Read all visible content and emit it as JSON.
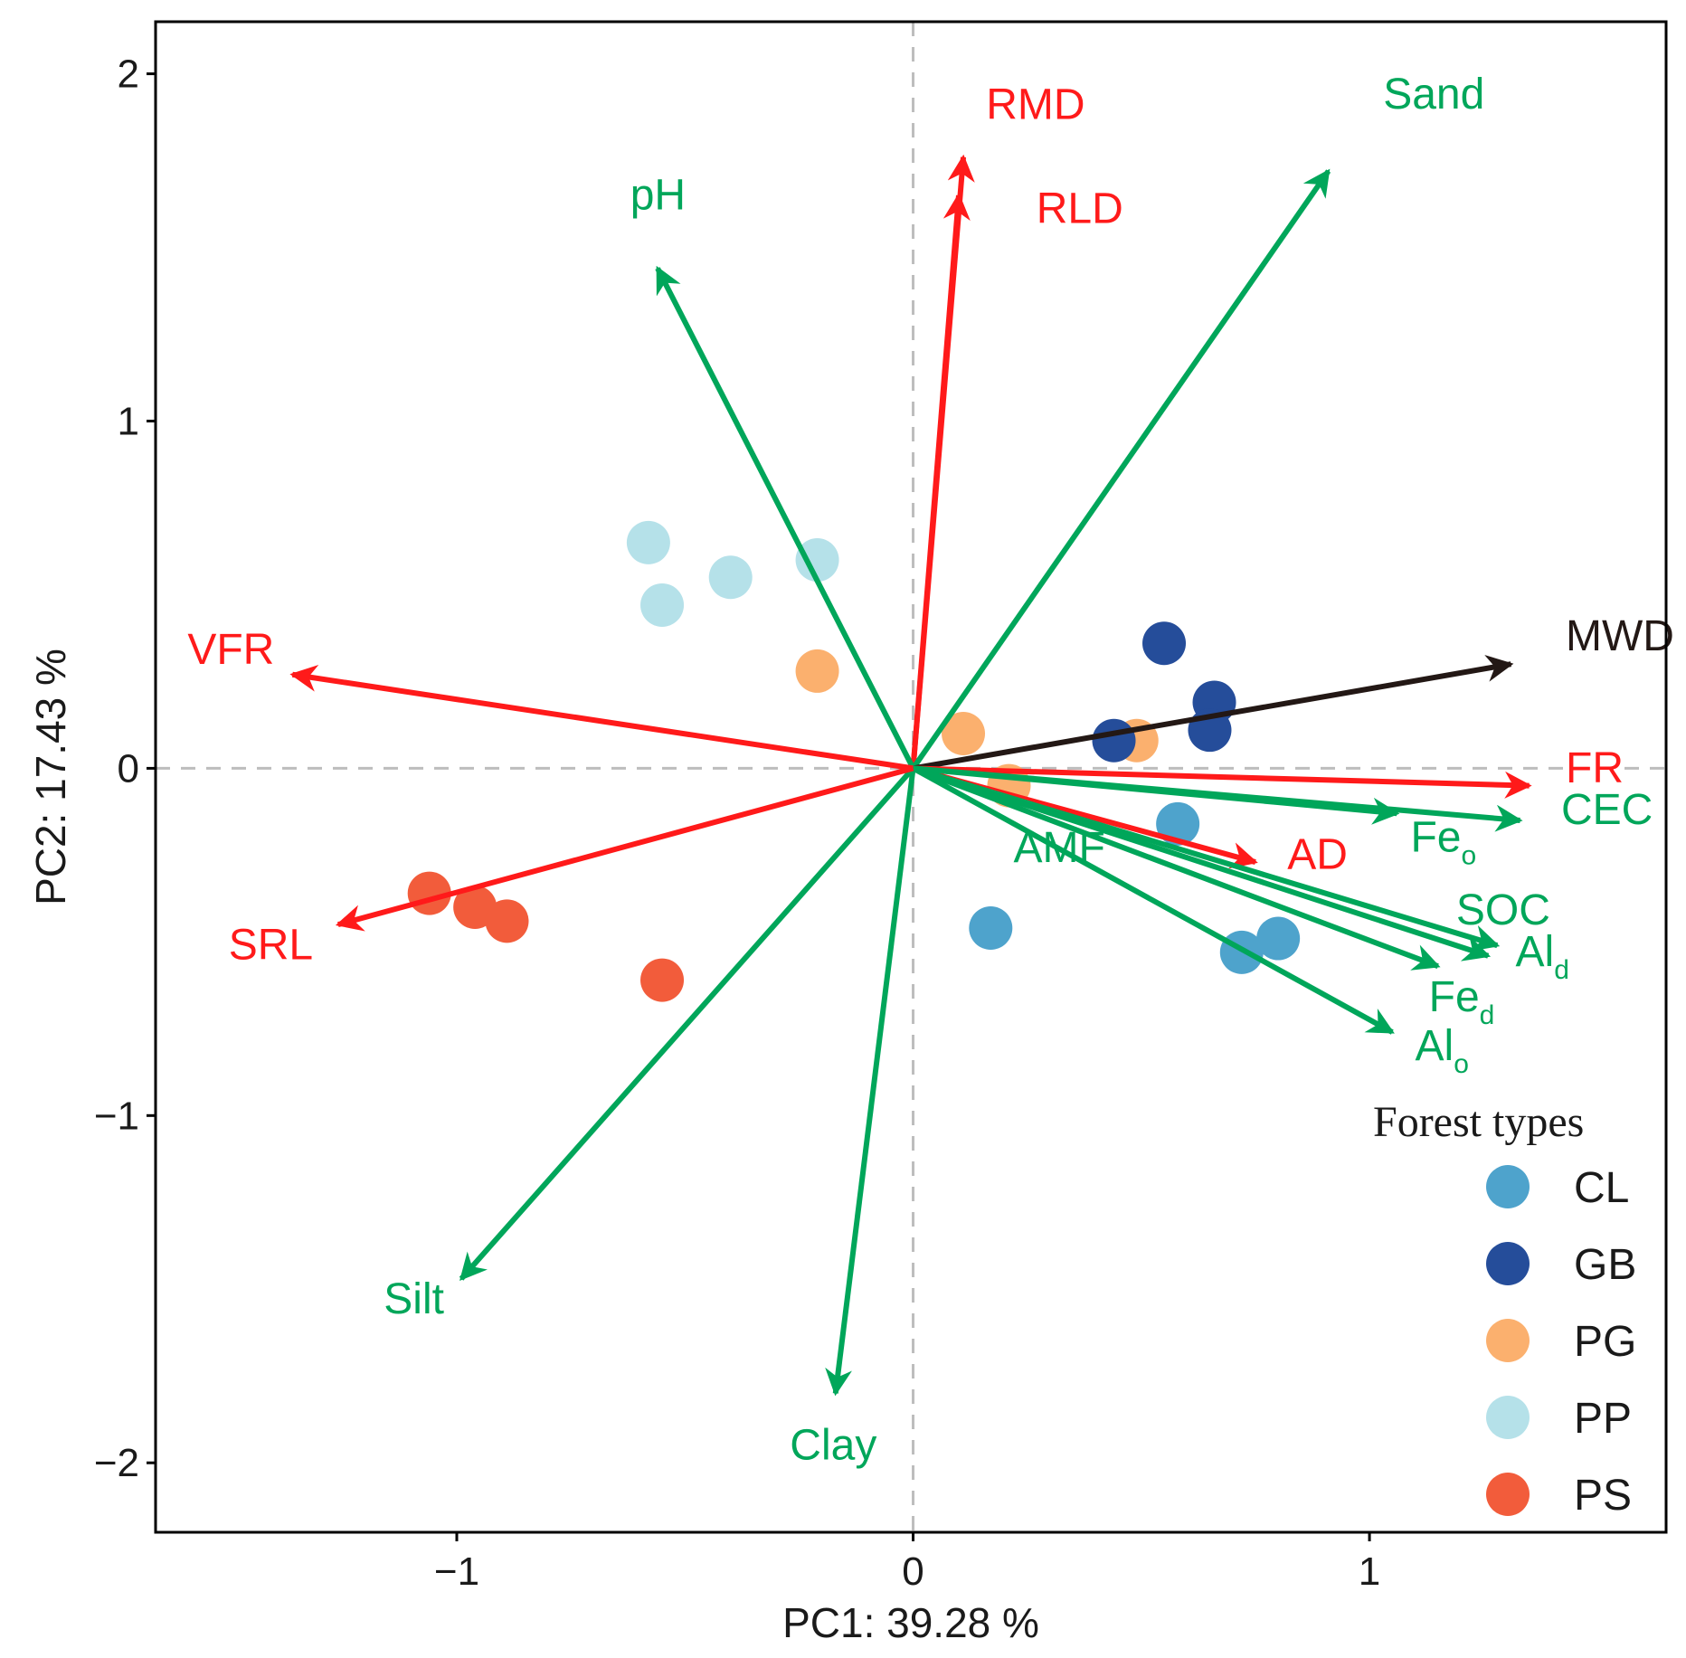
{
  "chart_data": {
    "type": "scatter",
    "subtype": "pca-biplot",
    "xlabel": "PC1: 39.28 %",
    "ylabel": "PC2: 17.43 %",
    "xlim": [
      -1.66,
      1.65
    ],
    "ylim": [
      -2.2,
      2.15
    ],
    "xticks": [
      -1,
      0,
      1
    ],
    "yticks": [
      2,
      1,
      0,
      -1,
      -2
    ],
    "xtick_labels": [
      "−1",
      "0",
      "1"
    ],
    "ytick_labels": [
      "2",
      "1",
      "0",
      "−1",
      "−2"
    ],
    "reference_lines": {
      "x": 0,
      "y": 0,
      "style": "dashed",
      "color": "#bdbdbd"
    },
    "vector_colors": {
      "red": "#ff1a1a",
      "green": "#00a65a",
      "black": "#231815"
    },
    "vectors": [
      {
        "name": "RMD",
        "sub": "",
        "color": "red",
        "x": 0.11,
        "y": 1.76,
        "lx": 0.16,
        "ly": 1.87
      },
      {
        "name": "RLD",
        "sub": "",
        "color": "red",
        "x": 0.1,
        "y": 1.65,
        "lx": 0.27,
        "ly": 1.57
      },
      {
        "name": "Sand",
        "sub": "",
        "color": "green",
        "x": 0.91,
        "y": 1.72,
        "lx": 1.03,
        "ly": 1.9
      },
      {
        "name": "pH",
        "sub": "",
        "color": "green",
        "x": -0.56,
        "y": 1.44,
        "lx": -0.62,
        "ly": 1.61
      },
      {
        "name": "MWD",
        "sub": "",
        "color": "black",
        "x": 1.31,
        "y": 0.3,
        "lx": 1.43,
        "ly": 0.34
      },
      {
        "name": "VFR",
        "sub": "",
        "color": "red",
        "x": -1.36,
        "y": 0.27,
        "lx": -1.59,
        "ly": 0.3
      },
      {
        "name": "FR",
        "sub": "",
        "color": "red",
        "x": 1.35,
        "y": -0.05,
        "lx": 1.43,
        "ly": -0.04
      },
      {
        "name": "CEC",
        "sub": "",
        "color": "green",
        "x": 1.33,
        "y": -0.15,
        "lx": 1.42,
        "ly": -0.16
      },
      {
        "name": "AD",
        "sub": "",
        "color": "red",
        "x": 0.75,
        "y": -0.27,
        "lx": 0.82,
        "ly": -0.29
      },
      {
        "name": "AMF",
        "sub": "",
        "color": "green",
        "x": 0.0,
        "y": 0.0,
        "lx": 0.22,
        "ly": -0.27
      },
      {
        "name": "Fe",
        "sub": "o",
        "color": "green",
        "x": 1.06,
        "y": -0.13,
        "lx": 1.09,
        "ly": -0.24
      },
      {
        "name": "SOC",
        "sub": "",
        "color": "green",
        "x": 1.28,
        "y": -0.51,
        "lx": 1.19,
        "ly": -0.45
      },
      {
        "name": "Al",
        "sub": "d",
        "color": "green",
        "x": 1.26,
        "y": -0.54,
        "lx": 1.32,
        "ly": -0.57
      },
      {
        "name": "Fe",
        "sub": "d",
        "color": "green",
        "x": 1.15,
        "y": -0.57,
        "lx": 1.13,
        "ly": -0.7
      },
      {
        "name": "Al",
        "sub": "o",
        "color": "green",
        "x": 1.05,
        "y": -0.76,
        "lx": 1.1,
        "ly": -0.84
      },
      {
        "name": "Silt",
        "sub": "",
        "color": "green",
        "x": -0.99,
        "y": -1.47,
        "lx": -1.16,
        "ly": -1.57
      },
      {
        "name": "Clay",
        "sub": "",
        "color": "green",
        "x": -0.17,
        "y": -1.8,
        "lx": -0.27,
        "ly": -1.99
      },
      {
        "name": "SRL",
        "sub": "",
        "color": "red",
        "x": -1.26,
        "y": -0.45,
        "lx": -1.5,
        "ly": -0.55
      }
    ],
    "groups": [
      {
        "name": "CL",
        "color": "#4ea3cc"
      },
      {
        "name": "GB",
        "color": "#254d9a"
      },
      {
        "name": "PG",
        "color": "#fbb06e"
      },
      {
        "name": "PP",
        "color": "#b5e1e9"
      },
      {
        "name": "PS",
        "color": "#f25c3b"
      }
    ],
    "points": [
      {
        "group": "PP",
        "x": -0.58,
        "y": 0.65
      },
      {
        "group": "PP",
        "x": -0.55,
        "y": 0.47
      },
      {
        "group": "PP",
        "x": -0.4,
        "y": 0.55
      },
      {
        "group": "PP",
        "x": -0.21,
        "y": 0.6
      },
      {
        "group": "PG",
        "x": -0.21,
        "y": 0.28
      },
      {
        "group": "PG",
        "x": 0.11,
        "y": 0.1
      },
      {
        "group": "PG",
        "x": 0.49,
        "y": 0.08
      },
      {
        "group": "PG",
        "x": 0.21,
        "y": -0.05
      },
      {
        "group": "GB",
        "x": 0.55,
        "y": 0.36
      },
      {
        "group": "GB",
        "x": 0.66,
        "y": 0.19
      },
      {
        "group": "GB",
        "x": 0.65,
        "y": 0.11
      },
      {
        "group": "GB",
        "x": 0.44,
        "y": 0.08
      },
      {
        "group": "CL",
        "x": 0.58,
        "y": -0.16
      },
      {
        "group": "CL",
        "x": 0.17,
        "y": -0.46
      },
      {
        "group": "CL",
        "x": 0.8,
        "y": -0.49
      },
      {
        "group": "CL",
        "x": 0.72,
        "y": -0.53
      },
      {
        "group": "PS",
        "x": -1.06,
        "y": -0.36
      },
      {
        "group": "PS",
        "x": -0.96,
        "y": -0.4
      },
      {
        "group": "PS",
        "x": -0.89,
        "y": -0.44
      },
      {
        "group": "PS",
        "x": -0.55,
        "y": -0.61
      }
    ],
    "legend": {
      "title": "Forest types",
      "position": "bottom-right",
      "entries": [
        "CL",
        "GB",
        "PG",
        "PP",
        "PS"
      ]
    }
  }
}
